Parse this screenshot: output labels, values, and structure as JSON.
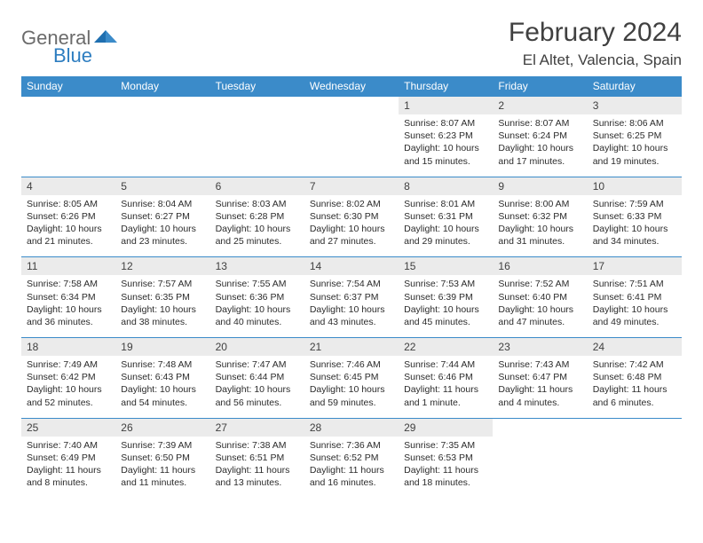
{
  "logo": {
    "text1": "General",
    "text2": "Blue"
  },
  "title": "February 2024",
  "location": "El Altet, Valencia, Spain",
  "colors": {
    "header_bg": "#3b8bc9",
    "header_text": "#ffffff",
    "date_bg": "#ebebeb",
    "date_text": "#404040",
    "cell_text": "#2b2b2b",
    "border": "#3b8bc9",
    "logo_gray": "#6b6b6b",
    "logo_blue": "#2d7dc0"
  },
  "day_names": [
    "Sunday",
    "Monday",
    "Tuesday",
    "Wednesday",
    "Thursday",
    "Friday",
    "Saturday"
  ],
  "weeks": [
    {
      "dates": [
        "",
        "",
        "",
        "",
        "1",
        "2",
        "3"
      ],
      "cells": [
        null,
        null,
        null,
        null,
        {
          "sunrise": "Sunrise: 8:07 AM",
          "sunset": "Sunset: 6:23 PM",
          "day1": "Daylight: 10 hours",
          "day2": "and 15 minutes."
        },
        {
          "sunrise": "Sunrise: 8:07 AM",
          "sunset": "Sunset: 6:24 PM",
          "day1": "Daylight: 10 hours",
          "day2": "and 17 minutes."
        },
        {
          "sunrise": "Sunrise: 8:06 AM",
          "sunset": "Sunset: 6:25 PM",
          "day1": "Daylight: 10 hours",
          "day2": "and 19 minutes."
        }
      ]
    },
    {
      "dates": [
        "4",
        "5",
        "6",
        "7",
        "8",
        "9",
        "10"
      ],
      "cells": [
        {
          "sunrise": "Sunrise: 8:05 AM",
          "sunset": "Sunset: 6:26 PM",
          "day1": "Daylight: 10 hours",
          "day2": "and 21 minutes."
        },
        {
          "sunrise": "Sunrise: 8:04 AM",
          "sunset": "Sunset: 6:27 PM",
          "day1": "Daylight: 10 hours",
          "day2": "and 23 minutes."
        },
        {
          "sunrise": "Sunrise: 8:03 AM",
          "sunset": "Sunset: 6:28 PM",
          "day1": "Daylight: 10 hours",
          "day2": "and 25 minutes."
        },
        {
          "sunrise": "Sunrise: 8:02 AM",
          "sunset": "Sunset: 6:30 PM",
          "day1": "Daylight: 10 hours",
          "day2": "and 27 minutes."
        },
        {
          "sunrise": "Sunrise: 8:01 AM",
          "sunset": "Sunset: 6:31 PM",
          "day1": "Daylight: 10 hours",
          "day2": "and 29 minutes."
        },
        {
          "sunrise": "Sunrise: 8:00 AM",
          "sunset": "Sunset: 6:32 PM",
          "day1": "Daylight: 10 hours",
          "day2": "and 31 minutes."
        },
        {
          "sunrise": "Sunrise: 7:59 AM",
          "sunset": "Sunset: 6:33 PM",
          "day1": "Daylight: 10 hours",
          "day2": "and 34 minutes."
        }
      ]
    },
    {
      "dates": [
        "11",
        "12",
        "13",
        "14",
        "15",
        "16",
        "17"
      ],
      "cells": [
        {
          "sunrise": "Sunrise: 7:58 AM",
          "sunset": "Sunset: 6:34 PM",
          "day1": "Daylight: 10 hours",
          "day2": "and 36 minutes."
        },
        {
          "sunrise": "Sunrise: 7:57 AM",
          "sunset": "Sunset: 6:35 PM",
          "day1": "Daylight: 10 hours",
          "day2": "and 38 minutes."
        },
        {
          "sunrise": "Sunrise: 7:55 AM",
          "sunset": "Sunset: 6:36 PM",
          "day1": "Daylight: 10 hours",
          "day2": "and 40 minutes."
        },
        {
          "sunrise": "Sunrise: 7:54 AM",
          "sunset": "Sunset: 6:37 PM",
          "day1": "Daylight: 10 hours",
          "day2": "and 43 minutes."
        },
        {
          "sunrise": "Sunrise: 7:53 AM",
          "sunset": "Sunset: 6:39 PM",
          "day1": "Daylight: 10 hours",
          "day2": "and 45 minutes."
        },
        {
          "sunrise": "Sunrise: 7:52 AM",
          "sunset": "Sunset: 6:40 PM",
          "day1": "Daylight: 10 hours",
          "day2": "and 47 minutes."
        },
        {
          "sunrise": "Sunrise: 7:51 AM",
          "sunset": "Sunset: 6:41 PM",
          "day1": "Daylight: 10 hours",
          "day2": "and 49 minutes."
        }
      ]
    },
    {
      "dates": [
        "18",
        "19",
        "20",
        "21",
        "22",
        "23",
        "24"
      ],
      "cells": [
        {
          "sunrise": "Sunrise: 7:49 AM",
          "sunset": "Sunset: 6:42 PM",
          "day1": "Daylight: 10 hours",
          "day2": "and 52 minutes."
        },
        {
          "sunrise": "Sunrise: 7:48 AM",
          "sunset": "Sunset: 6:43 PM",
          "day1": "Daylight: 10 hours",
          "day2": "and 54 minutes."
        },
        {
          "sunrise": "Sunrise: 7:47 AM",
          "sunset": "Sunset: 6:44 PM",
          "day1": "Daylight: 10 hours",
          "day2": "and 56 minutes."
        },
        {
          "sunrise": "Sunrise: 7:46 AM",
          "sunset": "Sunset: 6:45 PM",
          "day1": "Daylight: 10 hours",
          "day2": "and 59 minutes."
        },
        {
          "sunrise": "Sunrise: 7:44 AM",
          "sunset": "Sunset: 6:46 PM",
          "day1": "Daylight: 11 hours",
          "day2": "and 1 minute."
        },
        {
          "sunrise": "Sunrise: 7:43 AM",
          "sunset": "Sunset: 6:47 PM",
          "day1": "Daylight: 11 hours",
          "day2": "and 4 minutes."
        },
        {
          "sunrise": "Sunrise: 7:42 AM",
          "sunset": "Sunset: 6:48 PM",
          "day1": "Daylight: 11 hours",
          "day2": "and 6 minutes."
        }
      ]
    },
    {
      "dates": [
        "25",
        "26",
        "27",
        "28",
        "29",
        "",
        ""
      ],
      "cells": [
        {
          "sunrise": "Sunrise: 7:40 AM",
          "sunset": "Sunset: 6:49 PM",
          "day1": "Daylight: 11 hours",
          "day2": "and 8 minutes."
        },
        {
          "sunrise": "Sunrise: 7:39 AM",
          "sunset": "Sunset: 6:50 PM",
          "day1": "Daylight: 11 hours",
          "day2": "and 11 minutes."
        },
        {
          "sunrise": "Sunrise: 7:38 AM",
          "sunset": "Sunset: 6:51 PM",
          "day1": "Daylight: 11 hours",
          "day2": "and 13 minutes."
        },
        {
          "sunrise": "Sunrise: 7:36 AM",
          "sunset": "Sunset: 6:52 PM",
          "day1": "Daylight: 11 hours",
          "day2": "and 16 minutes."
        },
        {
          "sunrise": "Sunrise: 7:35 AM",
          "sunset": "Sunset: 6:53 PM",
          "day1": "Daylight: 11 hours",
          "day2": "and 18 minutes."
        },
        null,
        null
      ]
    }
  ]
}
